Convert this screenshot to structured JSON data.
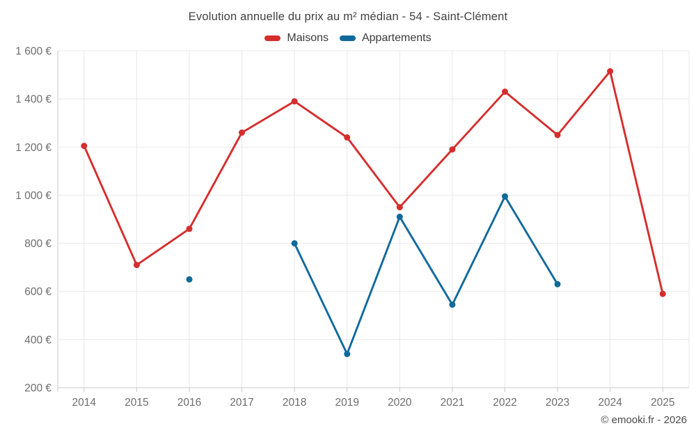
{
  "title": "Evolution annuelle du prix au m² médian - 54 - Saint-Clément",
  "footer": {
    "copyright": "© emooki.fr - 2026"
  },
  "chart_data": {
    "type": "line",
    "title": "Evolution annuelle du prix au m² médian - 54 - Saint-Clément",
    "categories": [
      "2014",
      "2015",
      "2016",
      "2017",
      "2018",
      "2019",
      "2020",
      "2021",
      "2022",
      "2023",
      "2024",
      "2025"
    ],
    "series": [
      {
        "name": "Maisons",
        "color": "#d62d2d",
        "values": [
          1205,
          710,
          860,
          1260,
          1390,
          1240,
          950,
          1190,
          1430,
          1250,
          1515,
          590
        ]
      },
      {
        "name": "Appartements",
        "color": "#10699c",
        "values": [
          null,
          null,
          650,
          null,
          800,
          340,
          910,
          545,
          995,
          630,
          null,
          null
        ]
      }
    ],
    "ylabel_suffix": "€",
    "ylim": [
      200,
      1600
    ],
    "y_tick_values": [
      200,
      400,
      600,
      800,
      1000,
      1200,
      1400,
      1600
    ],
    "y_tick_labels": [
      "200 €",
      "400 €",
      "600 €",
      "800 €",
      "1 000 €",
      "1 200 €",
      "1 400 €",
      "1 600 €"
    ],
    "grid": true,
    "legend_position": "top",
    "grid_color": "#e8e8e8",
    "axis_color": "#c9c9c9"
  }
}
